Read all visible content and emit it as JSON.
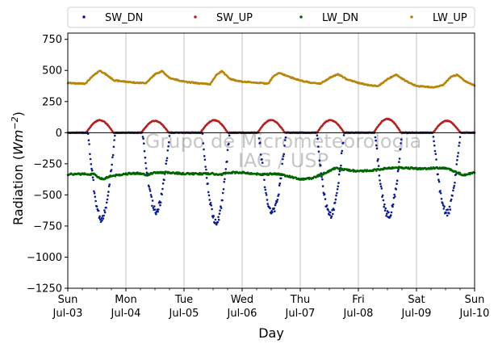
{
  "chart_data": {
    "type": "scatter",
    "ylabel_main": "Radiation (",
    "ylabel_unit": "Wm",
    "ylabel_exp": "−2",
    "ylabel_close": ")",
    "xlabel": "Day",
    "ylim": [
      -1250,
      800
    ],
    "xlim": [
      0,
      7
    ],
    "yticks": [
      {
        "value": 750,
        "label": "750"
      },
      {
        "value": 500,
        "label": "500"
      },
      {
        "value": 250,
        "label": "250"
      },
      {
        "value": 0,
        "label": "0"
      },
      {
        "value": -250,
        "label": "−250"
      },
      {
        "value": -500,
        "label": "−500"
      },
      {
        "value": -750,
        "label": "−750"
      },
      {
        "value": -1000,
        "label": "−1000"
      },
      {
        "value": -1250,
        "label": "−1250"
      }
    ],
    "xticks": [
      {
        "value": 0,
        "day": "Sun",
        "date": "Jul-03"
      },
      {
        "value": 1,
        "day": "Mon",
        "date": "Jul-04"
      },
      {
        "value": 2,
        "day": "Tue",
        "date": "Jul-05"
      },
      {
        "value": 3,
        "day": "Wed",
        "date": "Jul-06"
      },
      {
        "value": 4,
        "day": "Thu",
        "date": "Jul-07"
      },
      {
        "value": 5,
        "day": "Fri",
        "date": "Jul-08"
      },
      {
        "value": 6,
        "day": "Sat",
        "date": "Jul-09"
      },
      {
        "value": 7,
        "day": "Sun",
        "date": "Jul-10"
      }
    ],
    "grid": "vertical",
    "zero_line": true,
    "legend_position": "top",
    "watermark": [
      "Grupo de Micrometeorologia",
      "IAG / USP"
    ],
    "series": [
      {
        "name": "SW_DN",
        "color": "#0a1a8a",
        "sw_dn_minima": [
          -690,
          -625,
          -710,
          -635,
          -655,
          -665,
          -645
        ],
        "noon_x": [
          0.58,
          1.52,
          2.55,
          3.52,
          4.52,
          5.52,
          6.52
        ]
      },
      {
        "name": "SW_UP",
        "color": "#b22222",
        "sw_up_maxima": [
          100,
          95,
          100,
          100,
          100,
          110,
          95
        ],
        "noon_x": [
          0.55,
          1.5,
          2.52,
          3.5,
          4.52,
          5.5,
          6.52
        ]
      },
      {
        "name": "LW_DN",
        "color": "#006400",
        "points": [
          [
            0,
            -335
          ],
          [
            0.3,
            -330
          ],
          [
            0.45,
            -335
          ],
          [
            0.6,
            -375
          ],
          [
            0.72,
            -350
          ],
          [
            0.8,
            -345
          ],
          [
            1.0,
            -330
          ],
          [
            1.2,
            -325
          ],
          [
            1.35,
            -340
          ],
          [
            1.5,
            -320
          ],
          [
            1.75,
            -320
          ],
          [
            2.0,
            -330
          ],
          [
            2.3,
            -330
          ],
          [
            2.5,
            -330
          ],
          [
            2.6,
            -340
          ],
          [
            2.75,
            -320
          ],
          [
            3.0,
            -320
          ],
          [
            3.3,
            -335
          ],
          [
            3.6,
            -330
          ],
          [
            3.8,
            -350
          ],
          [
            4.0,
            -375
          ],
          [
            4.2,
            -365
          ],
          [
            4.4,
            -330
          ],
          [
            4.6,
            -285
          ],
          [
            4.8,
            -300
          ],
          [
            5.0,
            -310
          ],
          [
            5.3,
            -300
          ],
          [
            5.5,
            -285
          ],
          [
            5.7,
            -280
          ],
          [
            5.9,
            -285
          ],
          [
            6.1,
            -290
          ],
          [
            6.3,
            -285
          ],
          [
            6.5,
            -285
          ],
          [
            6.6,
            -300
          ],
          [
            6.8,
            -340
          ],
          [
            7.0,
            -320
          ]
        ]
      },
      {
        "name": "LW_UP",
        "color": "#b8860b",
        "points": [
          [
            0,
            400
          ],
          [
            0.2,
            395
          ],
          [
            0.3,
            395
          ],
          [
            0.42,
            450
          ],
          [
            0.55,
            500
          ],
          [
            0.65,
            470
          ],
          [
            0.8,
            420
          ],
          [
            1.0,
            410
          ],
          [
            1.2,
            400
          ],
          [
            1.35,
            400
          ],
          [
            1.5,
            470
          ],
          [
            1.62,
            495
          ],
          [
            1.75,
            440
          ],
          [
            2.0,
            410
          ],
          [
            2.3,
            395
          ],
          [
            2.45,
            390
          ],
          [
            2.55,
            460
          ],
          [
            2.65,
            495
          ],
          [
            2.8,
            430
          ],
          [
            3.0,
            410
          ],
          [
            3.3,
            400
          ],
          [
            3.45,
            395
          ],
          [
            3.55,
            460
          ],
          [
            3.65,
            480
          ],
          [
            3.8,
            450
          ],
          [
            4.0,
            420
          ],
          [
            4.2,
            400
          ],
          [
            4.35,
            395
          ],
          [
            4.5,
            440
          ],
          [
            4.65,
            470
          ],
          [
            4.8,
            430
          ],
          [
            5.0,
            400
          ],
          [
            5.2,
            380
          ],
          [
            5.35,
            375
          ],
          [
            5.5,
            430
          ],
          [
            5.65,
            465
          ],
          [
            5.8,
            420
          ],
          [
            6.0,
            375
          ],
          [
            6.3,
            365
          ],
          [
            6.45,
            380
          ],
          [
            6.6,
            450
          ],
          [
            6.7,
            465
          ],
          [
            6.85,
            410
          ],
          [
            7.0,
            380
          ]
        ]
      }
    ]
  }
}
